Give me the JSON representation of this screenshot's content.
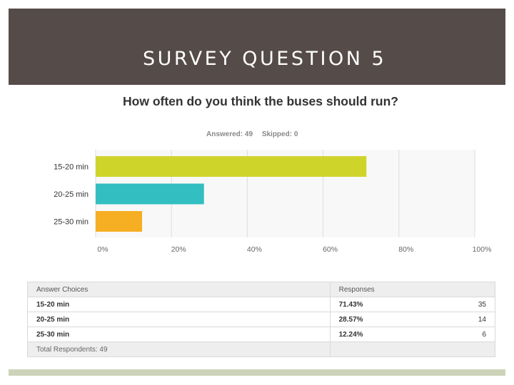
{
  "slide": {
    "title": "SURVEY QUESTION 5"
  },
  "chart_data": {
    "type": "bar",
    "orientation": "horizontal",
    "title": "How often do you think the buses should run?",
    "answered_label": "Answered: 49",
    "skipped_label": "Skipped: 0",
    "categories": [
      "15-20 min",
      "20-25 min",
      "25-30 min"
    ],
    "values": [
      71.43,
      28.57,
      12.24
    ],
    "colors": [
      "#cfd42b",
      "#33bec1",
      "#f6ae22"
    ],
    "xlim": [
      0,
      100
    ],
    "x_ticks": [
      "0%",
      "20%",
      "40%",
      "60%",
      "80%",
      "100%"
    ],
    "grid": true
  },
  "table": {
    "header": {
      "choice": "Answer Choices",
      "responses": "Responses"
    },
    "rows": [
      {
        "choice": "15-20 min",
        "pct": "71.43%",
        "count": "35"
      },
      {
        "choice": "20-25 min",
        "pct": "28.57%",
        "count": "14"
      },
      {
        "choice": "25-30 min",
        "pct": "12.24%",
        "count": "6"
      }
    ],
    "total": "Total Respondents: 49"
  }
}
